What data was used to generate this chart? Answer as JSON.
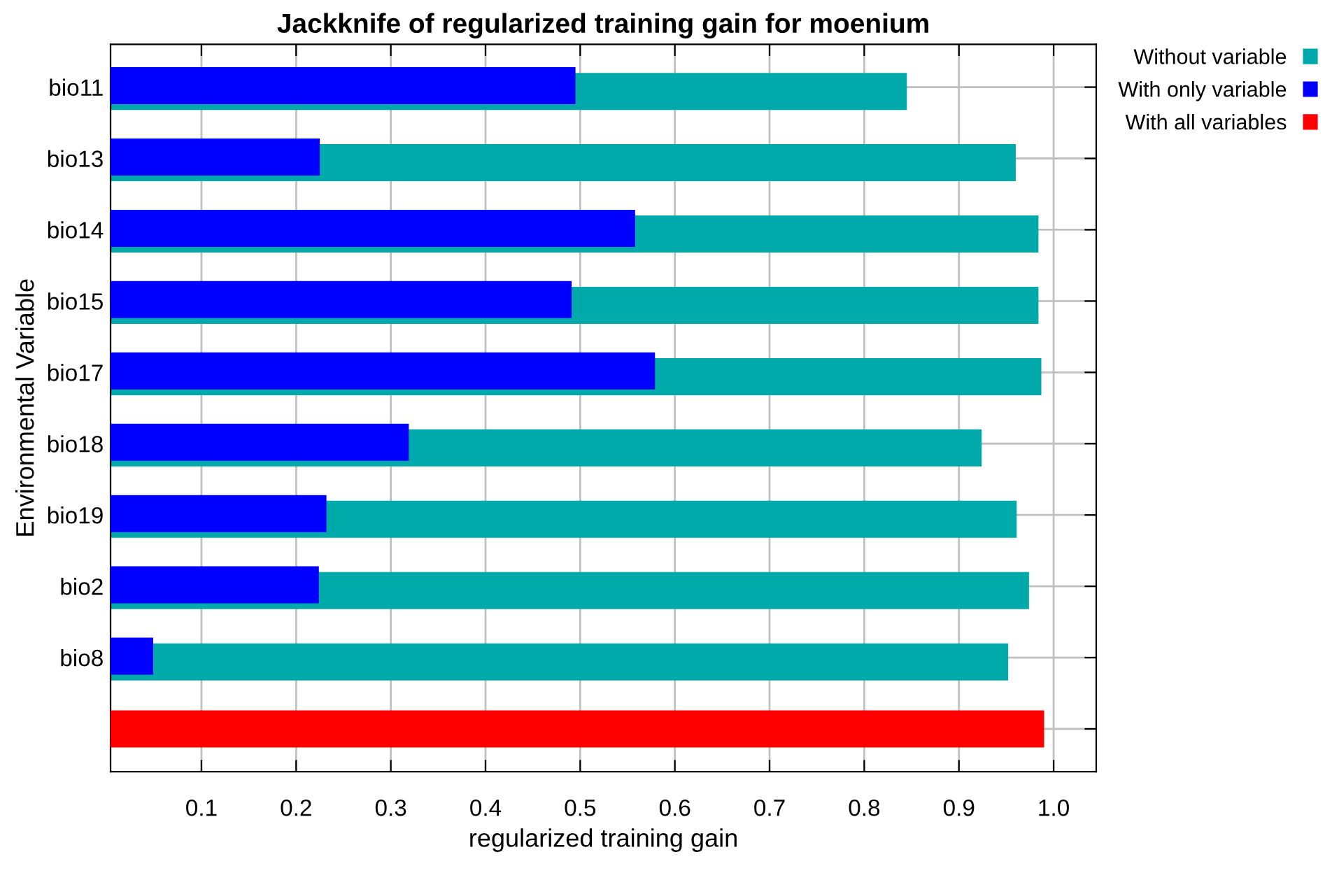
{
  "chart_data": {
    "type": "bar",
    "orientation": "horizontal",
    "title": "Jackknife of regularized training gain for moenium",
    "xlabel": "regularized training gain",
    "ylabel": "Environmental Variable",
    "categories": [
      "bio11",
      "bio13",
      "bio14",
      "bio15",
      "bio17",
      "bio18",
      "bio19",
      "bio2",
      "bio8",
      null
    ],
    "series": [
      {
        "name": "Without variable",
        "color": "#00aaaa",
        "values": [
          0.845,
          0.96,
          0.984,
          0.984,
          0.987,
          0.924,
          0.961,
          0.974,
          0.952,
          null
        ]
      },
      {
        "name": "With only variable",
        "color": "#0000ff",
        "values": [
          0.495,
          0.225,
          0.558,
          0.491,
          0.579,
          0.319,
          0.232,
          0.224,
          0.049,
          null
        ]
      },
      {
        "name": "With all variables",
        "color": "#ff0000",
        "values": [
          null,
          null,
          null,
          null,
          null,
          null,
          null,
          null,
          null,
          0.99
        ]
      }
    ],
    "xlim": [
      0.004,
      1.045
    ],
    "xticks": [
      0.1,
      0.2,
      0.3,
      0.4,
      0.5,
      0.6,
      0.7,
      0.8,
      0.9,
      {
        "value": 1.0,
        "label": "1.0"
      }
    ],
    "grid": true,
    "legend": "top right"
  }
}
